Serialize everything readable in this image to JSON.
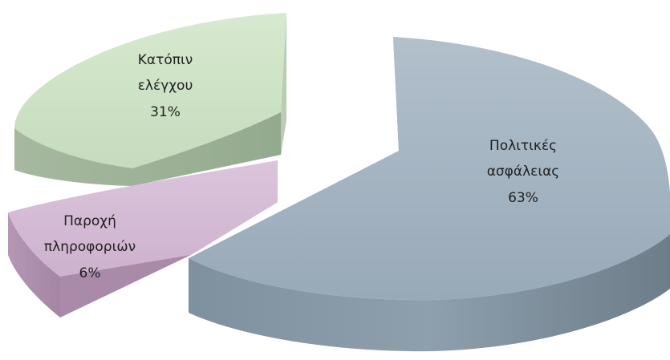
{
  "chart_data": {
    "type": "pie",
    "style": "3d-exploded",
    "slices": [
      {
        "label_line1": "Πολιτικές",
        "label_line2": "ασφάλειας",
        "percent_label": "63%",
        "value": 63,
        "color": "#a3b3c1"
      },
      {
        "label_line1": "Παροχή",
        "label_line2": "πληροφοριών",
        "percent_label": "6%",
        "value": 6,
        "color": "#d6bbd6"
      },
      {
        "label_line1": "Κατόπιν",
        "label_line2": "ελέγχου",
        "percent_label": "31%",
        "value": 31,
        "color": "#cfe3c7"
      }
    ]
  }
}
